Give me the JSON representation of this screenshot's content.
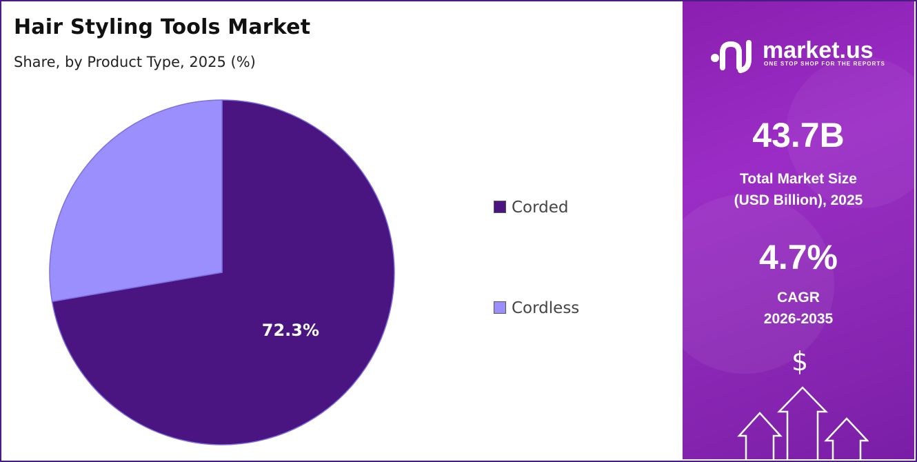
{
  "title": "Hair Styling Tools Market",
  "subtitle": "Share, by Product Type, 2025 (%)",
  "chart_data": {
    "type": "pie",
    "categories": [
      "Corded",
      "Cordless"
    ],
    "values": [
      72.3,
      27.7
    ],
    "data_labels": [
      "72.3%",
      ""
    ],
    "colors": [
      "#4a1580",
      "#9a8ffc"
    ],
    "legend_position": "right"
  },
  "legend": {
    "items": [
      {
        "label": "Corded",
        "color": "#4a1580"
      },
      {
        "label": "Cordless",
        "color": "#9a8ffc"
      }
    ]
  },
  "panel": {
    "brand_name": "market.us",
    "brand_tagline": "ONE STOP SHOP FOR THE REPORTS",
    "market_size_value": "43.7B",
    "market_size_label_line1": "Total Market Size",
    "market_size_label_line2": "(USD Billion), 2025",
    "cagr_value": "4.7%",
    "cagr_label_line1": "CAGR",
    "cagr_label_line2": "2026-2035",
    "dollar_symbol": "$",
    "icons": [
      "market-us-logo-icon",
      "dollar-icon",
      "growth-arrows-icon"
    ]
  }
}
